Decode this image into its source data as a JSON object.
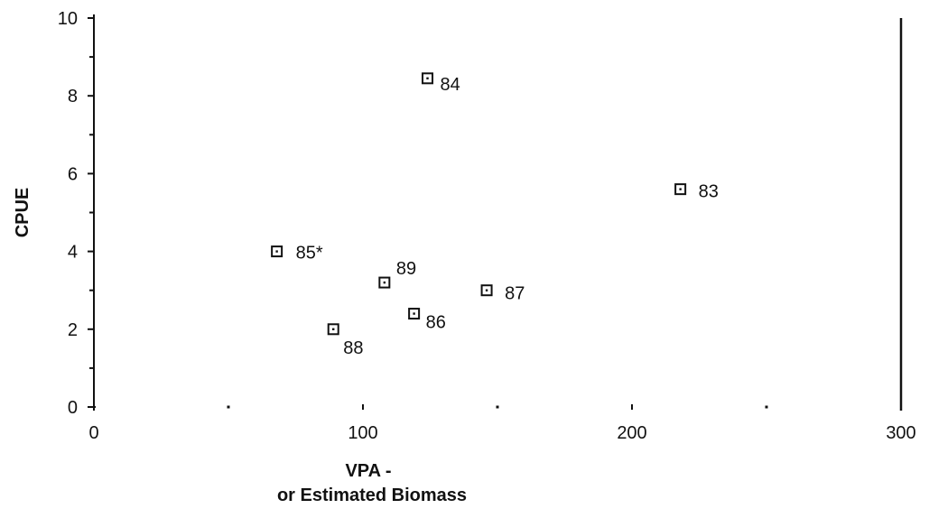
{
  "chart_data": {
    "type": "scatter",
    "title": "",
    "xlabel_line1": "VPA -",
    "xlabel_line2": "or Estimated Biomass",
    "ylabel": "CPUE",
    "xlim": [
      0,
      300
    ],
    "ylim": [
      0,
      10
    ],
    "x_ticks": [
      "0",
      "100",
      "200",
      "300"
    ],
    "y_ticks": [
      "0",
      "2",
      "4",
      "6",
      "8",
      "10"
    ],
    "grid": false,
    "legend": "none",
    "marker": "hollow-square",
    "points": [
      {
        "label": "83",
        "x": 218,
        "y": 5.6
      },
      {
        "label": "84",
        "x": 124,
        "y": 8.45
      },
      {
        "label": "85*",
        "x": 68,
        "y": 4.0
      },
      {
        "label": "86",
        "x": 119,
        "y": 2.4
      },
      {
        "label": "87",
        "x": 146,
        "y": 3.0
      },
      {
        "label": "88",
        "x": 89,
        "y": 2.0
      },
      {
        "label": "89",
        "x": 108,
        "y": 3.2
      }
    ]
  },
  "colors": {
    "ink": "#111111",
    "background": "#ffffff"
  }
}
